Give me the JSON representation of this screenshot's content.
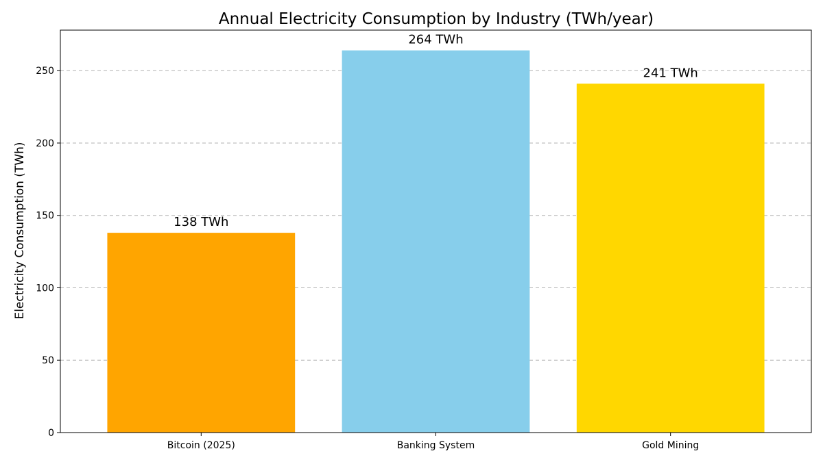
{
  "chart_data": {
    "type": "bar",
    "title": "Annual Electricity Consumption by Industry (TWh/year)",
    "xlabel": "",
    "ylabel": "Electricity Consumption (TWh)",
    "categories": [
      "Bitcoin (2025)",
      "Banking System",
      "Gold Mining"
    ],
    "values": [
      138,
      264,
      241
    ],
    "data_labels": [
      "138 TWh",
      "264 TWh",
      "241 TWh"
    ],
    "colors": [
      "#FFA500",
      "#87CEEB",
      "#FFD700"
    ],
    "ylim": [
      0,
      278
    ],
    "yticks": [
      0,
      50,
      100,
      150,
      200,
      250
    ],
    "grid": "y-dashed",
    "legend": "none"
  }
}
